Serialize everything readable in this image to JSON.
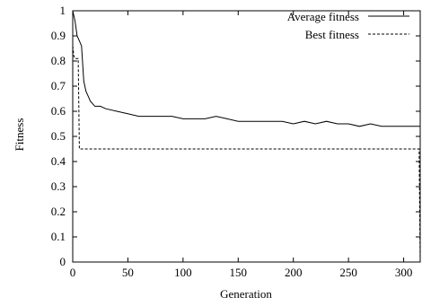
{
  "chart_data": {
    "type": "line",
    "title": "",
    "xlabel": "Generation",
    "ylabel": "Fitness",
    "xlim": [
      0,
      315
    ],
    "ylim": [
      0,
      1
    ],
    "xticks": [
      0,
      50,
      100,
      150,
      200,
      250,
      300
    ],
    "yticks": [
      0,
      0.1,
      0.2,
      0.3,
      0.4,
      0.5,
      0.6,
      0.7,
      0.8,
      0.9,
      1
    ],
    "grid": false,
    "legend_position": "top-right",
    "series": [
      {
        "name": "Average fitness",
        "style": "solid",
        "x": [
          0,
          2,
          4,
          6,
          8,
          10,
          12,
          14,
          16,
          18,
          20,
          25,
          30,
          40,
          50,
          60,
          70,
          80,
          90,
          100,
          110,
          120,
          130,
          140,
          150,
          160,
          170,
          180,
          190,
          200,
          210,
          220,
          230,
          240,
          250,
          260,
          270,
          280,
          290,
          300,
          310,
          315
        ],
        "y": [
          1.0,
          0.96,
          0.9,
          0.88,
          0.86,
          0.72,
          0.68,
          0.66,
          0.64,
          0.63,
          0.62,
          0.62,
          0.61,
          0.6,
          0.59,
          0.58,
          0.58,
          0.58,
          0.58,
          0.57,
          0.57,
          0.57,
          0.58,
          0.57,
          0.56,
          0.56,
          0.56,
          0.56,
          0.56,
          0.55,
          0.56,
          0.55,
          0.56,
          0.55,
          0.55,
          0.54,
          0.55,
          0.54,
          0.54,
          0.54,
          0.54,
          0.54
        ]
      },
      {
        "name": "Best fitness",
        "style": "dashed",
        "x": [
          0,
          1,
          2,
          5,
          6,
          314,
          315
        ],
        "y": [
          0.86,
          0.82,
          0.81,
          0.81,
          0.45,
          0.45,
          0.0
        ]
      }
    ]
  }
}
